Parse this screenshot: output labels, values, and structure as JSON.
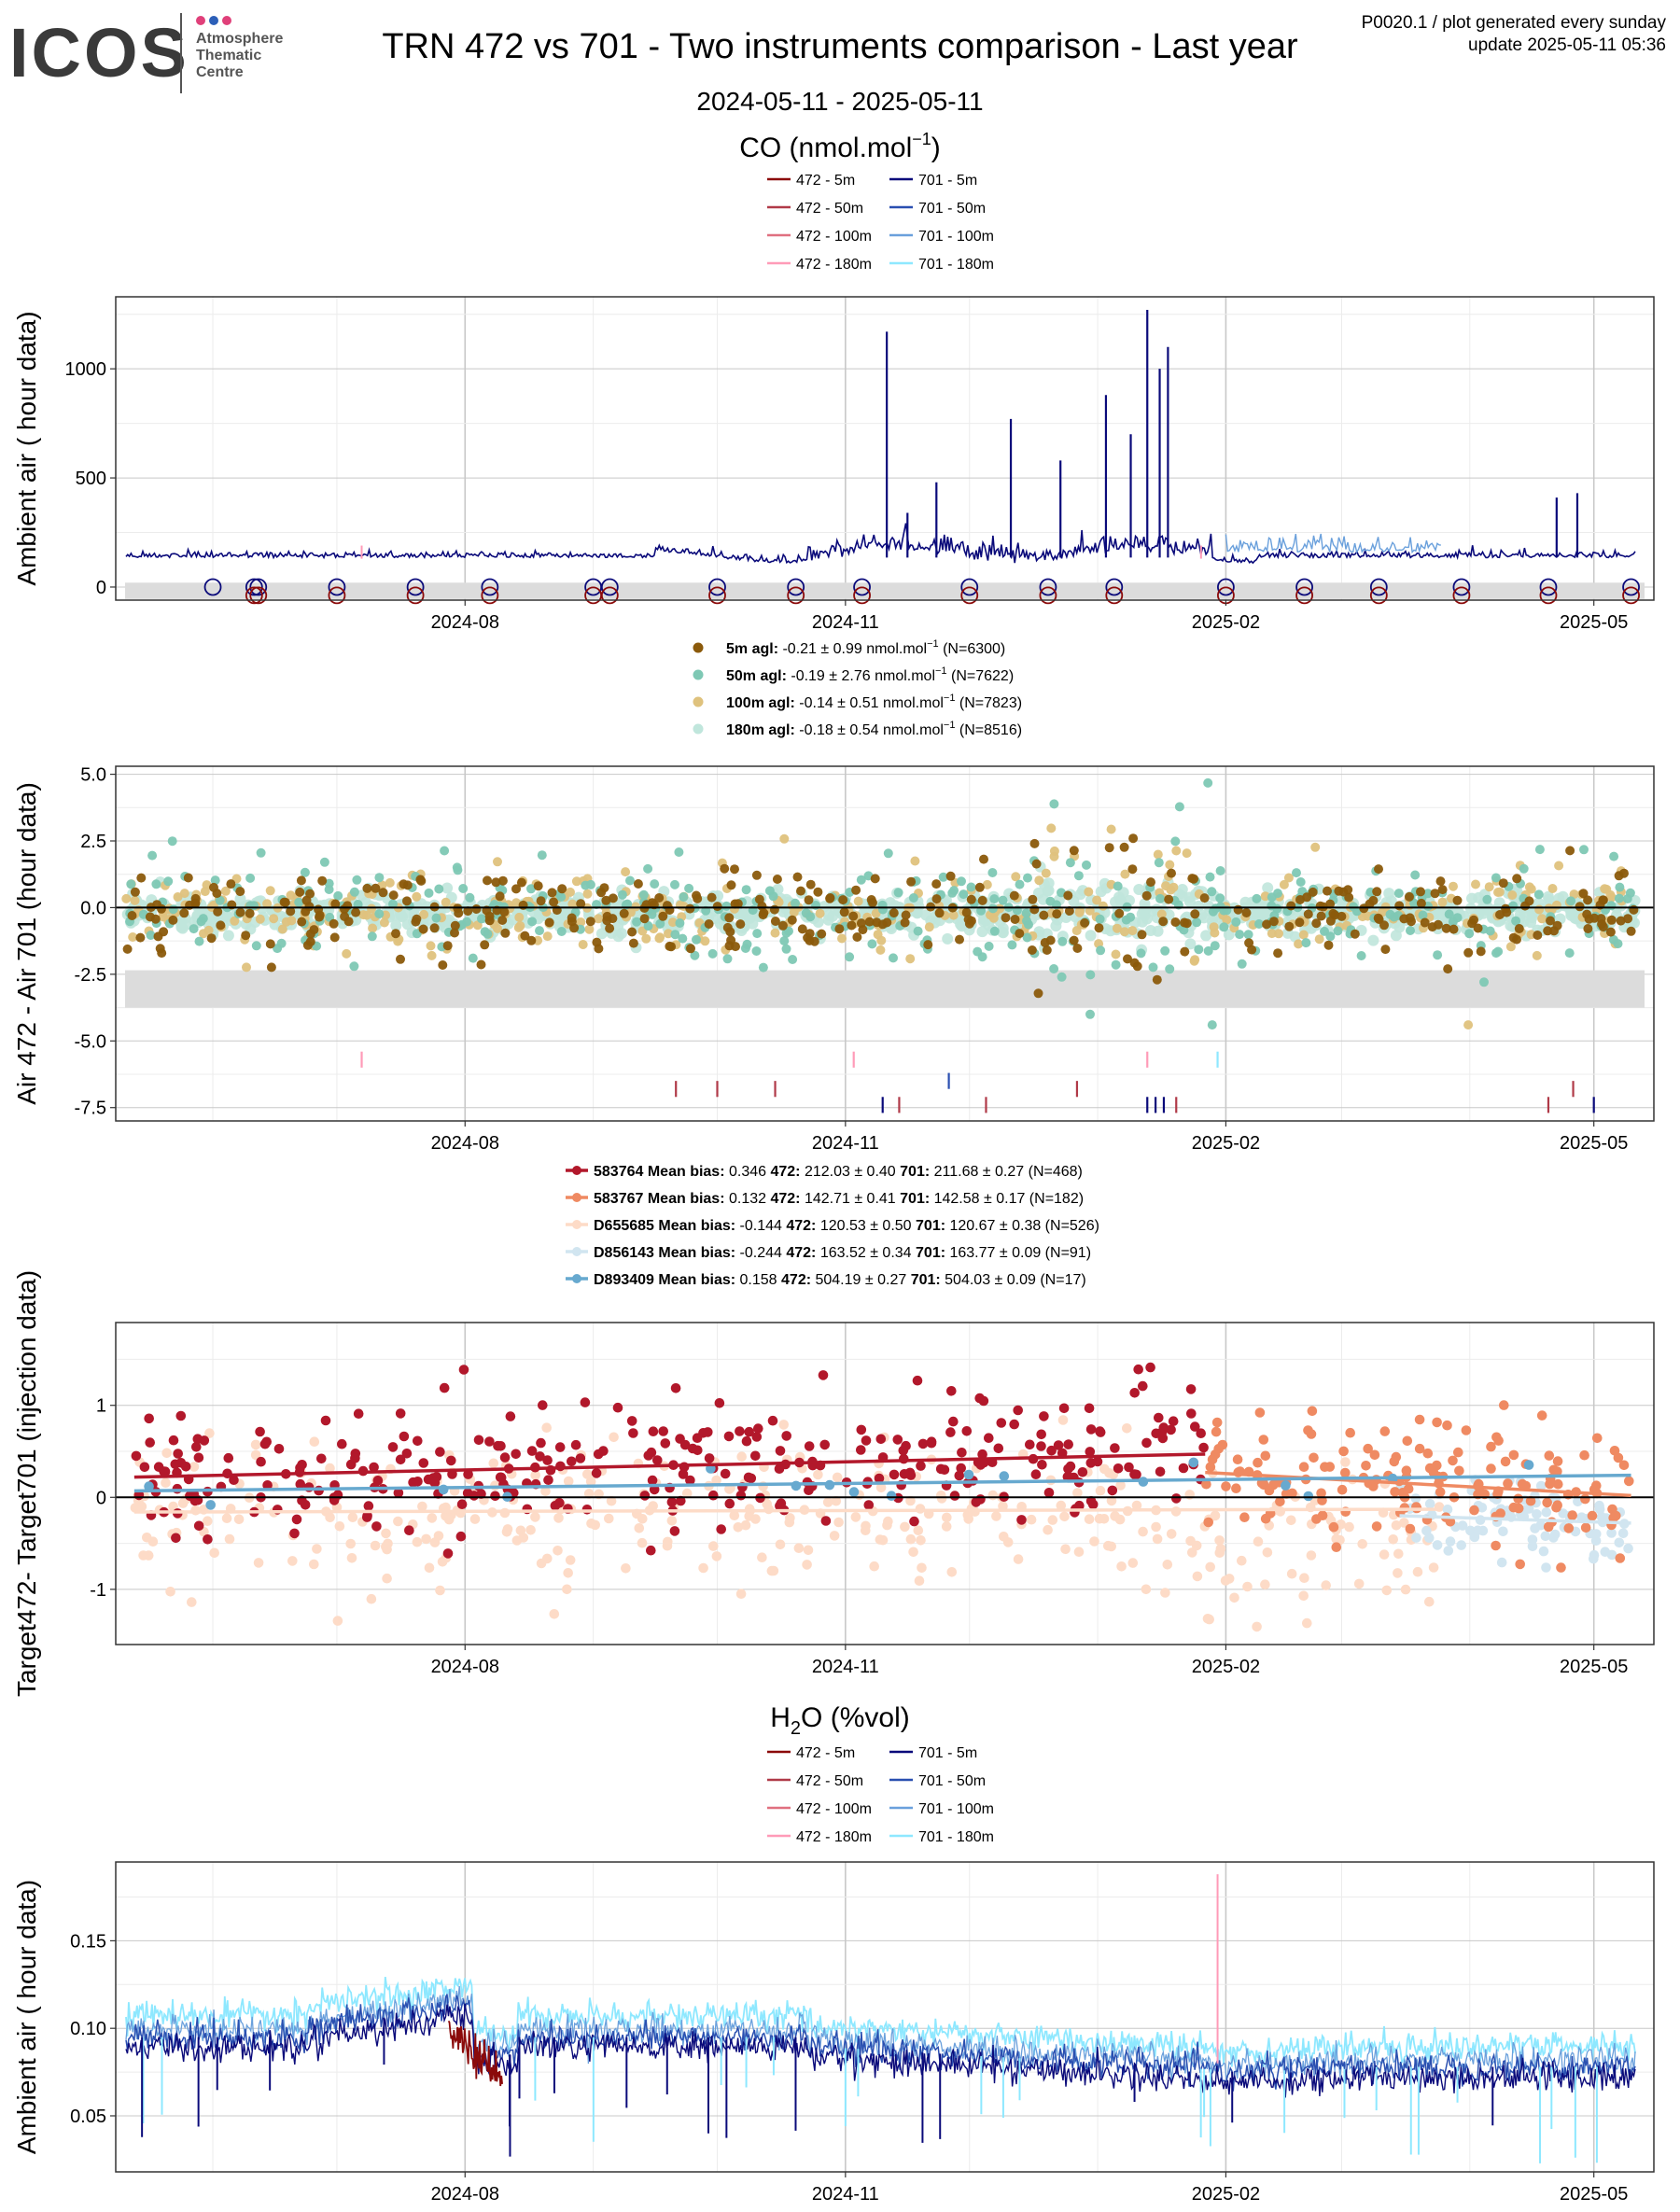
{
  "header": {
    "logo_text": "ICOS",
    "logo_sub": [
      "Atmosphere",
      "Thematic",
      "Centre"
    ],
    "title": "TRN 472 vs 701 - Two instruments comparison - Last year",
    "date_range": "2024-05-11 - 2025-05-11",
    "code_line": "P0020.1 / plot generated every sunday",
    "update_line": "update  2025-05-11 05:36"
  },
  "colors": {
    "i472": [
      "#8b0a0a",
      "#b03a48",
      "#e07080",
      "#ff9bb8"
    ],
    "i701": [
      "#0a0a7a",
      "#2a4fb0",
      "#6aa0dc",
      "#8ee8ff"
    ],
    "diff": [
      "#8b5a0b",
      "#7ec8b4",
      "#dfc27d",
      "#c0e6dc"
    ],
    "targets": [
      "#b2182b",
      "#ef8a62",
      "#fddbc7",
      "#d1e5f0",
      "#67a9cf"
    ],
    "band": "#dcdcdc",
    "grid_major": "#c8c8c8",
    "grid_minor": "#ececec"
  },
  "chart_data": [
    {
      "type": "line",
      "title": "CO (nmol.mol",
      "title_sup": "−1",
      "title_end": ")",
      "ylabel": "Ambient air ( hour data)",
      "ylim": [
        -60,
        1330
      ],
      "yticks": [
        0,
        500,
        1000
      ],
      "xticks": [
        "2024-08",
        "2024-11",
        "2025-02",
        "2025-05"
      ],
      "legend": [
        "472 - 5m",
        "472 - 50m",
        "472 - 100m",
        "472 - 180m",
        "701 - 5m",
        "701 - 50m",
        "701 - 100m",
        "701 - 180m"
      ],
      "baseline": 135,
      "spikes": [
        {
          "date": "2024-11-11",
          "value": 1170
        },
        {
          "date": "2024-11-16",
          "value": 340
        },
        {
          "date": "2024-11-23",
          "value": 480
        },
        {
          "date": "2024-12-11",
          "value": 770
        },
        {
          "date": "2024-12-23",
          "value": 580
        },
        {
          "date": "2025-01-03",
          "value": 880
        },
        {
          "date": "2025-01-09",
          "value": 700
        },
        {
          "date": "2025-01-13",
          "value": 1270
        },
        {
          "date": "2025-01-16",
          "value": 1000
        },
        {
          "date": "2025-01-18",
          "value": 1100
        },
        {
          "date": "2025-04-22",
          "value": 410
        },
        {
          "date": "2025-04-27",
          "value": 430
        }
      ],
      "markers": {
        "row_701": [
          "2024-06-01",
          "2024-06-11",
          "2024-06-12",
          "2024-07-01",
          "2024-07-20",
          "2024-08-07",
          "2024-09-01",
          "2024-09-05",
          "2024-10-01",
          "2024-10-20",
          "2024-11-05",
          "2024-12-01",
          "2024-12-20",
          "2025-01-05",
          "2025-02-01",
          "2025-02-20",
          "2025-03-10",
          "2025-03-30",
          "2025-04-20",
          "2025-05-10"
        ],
        "row_472": [
          "2024-06-11",
          "2024-06-12",
          "2024-07-01",
          "2024-07-20",
          "2024-08-07",
          "2024-09-01",
          "2024-09-05",
          "2024-10-01",
          "2024-10-20",
          "2024-11-05",
          "2024-12-01",
          "2024-12-20",
          "2025-01-05",
          "2025-02-01",
          "2025-02-20",
          "2025-03-10",
          "2025-03-30",
          "2025-04-20",
          "2025-05-10"
        ]
      }
    },
    {
      "type": "scatter",
      "ylabel": "Air 472 - Air 701 (hour data)",
      "ylim": [
        -8.0,
        5.3
      ],
      "yticks": [
        -7.5,
        -5.0,
        -2.5,
        0.0,
        2.5,
        5.0
      ],
      "ytick_labels": [
        "-7.5",
        "-5.0",
        "-2.5",
        "0.0",
        "2.5",
        "5.0"
      ],
      "xticks": [
        "2024-08",
        "2024-11",
        "2025-02",
        "2025-05"
      ],
      "band": [
        -3.75,
        -2.35
      ],
      "series": [
        {
          "name_bold": "5m agl:",
          "stat": "-0.21 ± 0.99 nmol.mol",
          "n": "(N=6300)"
        },
        {
          "name_bold": "50m agl:",
          "stat": "-0.19 ± 2.76 nmol.mol",
          "n": "(N=7622)"
        },
        {
          "name_bold": "100m agl:",
          "stat": "-0.14 ± 0.51 nmol.mol",
          "n": "(N=7823)"
        },
        {
          "name_bold": "180m agl:",
          "stat": "-0.18 ± 0.54 nmol.mol",
          "n": "(N=8516)"
        }
      ],
      "unit_sup": "−1"
    },
    {
      "type": "scatter",
      "ylabel": "Target472- Target701 (injection data)",
      "ylim": [
        -1.6,
        1.9
      ],
      "yticks": [
        -1,
        0,
        1
      ],
      "ytick_labels": [
        "-1",
        "0",
        "1"
      ],
      "xticks": [
        "2024-08",
        "2024-11",
        "2025-02",
        "2025-05"
      ],
      "series": [
        {
          "name": "583764",
          "mean_bias": "0.346",
          "v472": "212.03 ± 0.40",
          "v701": "211.68 ± 0.27",
          "n": "(N=468)",
          "mean": 0.35,
          "start": "2024-05-13",
          "end": "2025-01-27",
          "trend": [
            0.22,
            0.47
          ]
        },
        {
          "name": "583767",
          "mean_bias": "0.132",
          "v472": "142.71 ± 0.41",
          "v701": "142.58 ± 0.17",
          "n": "(N=182)",
          "mean": 0.13,
          "start": "2025-01-27",
          "end": "2025-05-10",
          "trend": [
            0.27,
            0.02
          ]
        },
        {
          "name": "D655685",
          "mean_bias": "-0.144",
          "v472": "120.53 ± 0.50",
          "v701": "120.67 ± 0.38",
          "n": "(N=526)",
          "mean": -0.14,
          "start": "2024-05-13",
          "end": "2025-03-25",
          "trend": [
            -0.16,
            -0.13
          ]
        },
        {
          "name": "D856143",
          "mean_bias": "-0.244",
          "v472": "163.52 ± 0.34",
          "v701": "163.77 ± 0.09",
          "n": "(N=91)",
          "mean": -0.24,
          "start": "2025-03-15",
          "end": "2025-05-10",
          "trend": [
            -0.2,
            -0.28
          ]
        },
        {
          "name": "D893409",
          "mean_bias": "0.158",
          "v472": "504.19 ± 0.27",
          "v701": "504.03 ± 0.09",
          "n": "(N=17)",
          "mean": 0.16,
          "start": "2024-05-13",
          "end": "2025-05-10",
          "trend": [
            0.07,
            0.24
          ]
        }
      ],
      "legend_labels": {
        "mean_bias": "Mean bias:",
        "i472": "472:",
        "i701": "701:"
      }
    },
    {
      "type": "line",
      "title_pre": "H",
      "title_sub": "2",
      "title_post": "O (%vol)",
      "ylabel": "Ambient air ( hour data)",
      "ylim": [
        0.018,
        0.195
      ],
      "yticks": [
        0.05,
        0.1,
        0.15
      ],
      "ytick_labels": [
        "0.05",
        "0.10",
        "0.15"
      ],
      "xticks": [
        "2024-08",
        "2024-11",
        "2025-02",
        "2025-05"
      ],
      "legend": [
        "472 - 5m",
        "472 - 50m",
        "472 - 100m",
        "472 - 180m",
        "701 - 5m",
        "701 - 50m",
        "701 - 100m",
        "701 - 180m"
      ],
      "spikes": [
        {
          "date": "2025-01-30",
          "value": 0.188
        }
      ]
    }
  ]
}
